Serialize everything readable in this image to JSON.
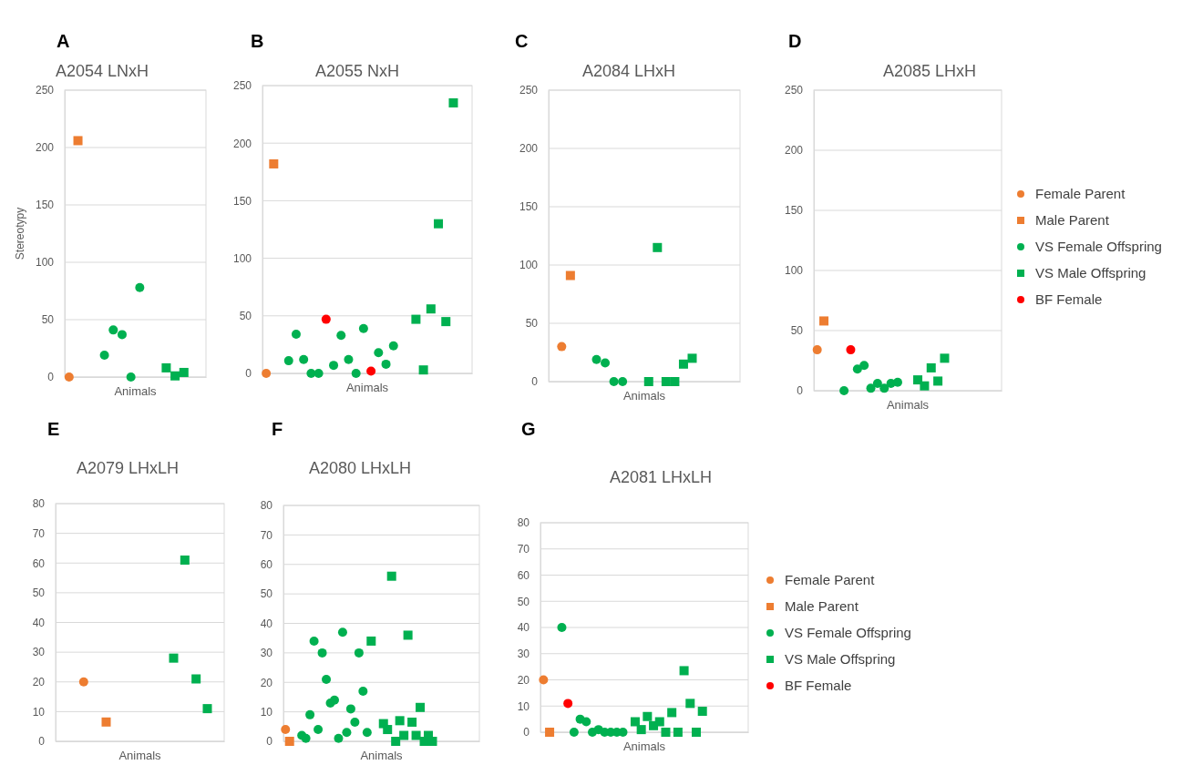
{
  "chart_data": [
    {
      "type": "scatter",
      "title": "A2054 LNxH",
      "annotations": [
        "A"
      ],
      "xlabel": "Animals",
      "ylabel": "Stereotypy",
      "categories": [
        null,
        null,
        null,
        null,
        null,
        null,
        null,
        null,
        null,
        null,
        null,
        null,
        null,
        null,
        null,
        null
      ],
      "ylim": [
        0,
        250
      ],
      "yticks": [
        0,
        50,
        100,
        150,
        200,
        250
      ],
      "grid": "y",
      "tick_labels": "y",
      "legend": false,
      "series": [
        {
          "color": "#ed7d31",
          "marker": "circle",
          "values": [
            0,
            null,
            null,
            null,
            null,
            null,
            null,
            null,
            null,
            null,
            null,
            null,
            null,
            null,
            null,
            null
          ]
        },
        {
          "color": "#ed7d31",
          "marker": "square",
          "values": [
            null,
            206,
            null,
            null,
            null,
            null,
            null,
            null,
            null,
            null,
            null,
            null,
            null,
            null,
            null,
            null
          ]
        },
        {
          "color": "#00b050",
          "marker": "circle",
          "values": [
            null,
            null,
            null,
            null,
            19,
            41,
            37,
            0,
            78,
            null,
            null,
            null,
            null,
            null,
            null,
            null
          ]
        },
        {
          "color": "#00b050",
          "marker": "square",
          "values": [
            null,
            null,
            null,
            null,
            null,
            null,
            null,
            null,
            null,
            null,
            null,
            8,
            1,
            4,
            null,
            null
          ]
        }
      ]
    },
    {
      "type": "scatter",
      "title": "A2055 NxH",
      "annotations": [
        "B"
      ],
      "xlabel": "Animals",
      "categories": [
        null,
        null,
        null,
        null,
        null,
        null,
        null,
        null,
        null,
        null,
        null,
        null,
        null,
        null,
        null,
        null,
        null,
        null,
        null,
        null,
        null,
        null,
        null,
        null,
        null,
        null,
        null,
        null
      ],
      "ylim": [
        0,
        250
      ],
      "yticks": [
        0,
        50,
        100,
        150,
        200,
        250
      ],
      "grid": "y",
      "tick_labels": "y",
      "legend": false,
      "series": [
        {
          "color": "#ed7d31",
          "marker": "circle",
          "values": [
            0,
            null,
            null,
            null,
            null,
            null,
            null,
            null,
            null,
            null,
            null,
            null,
            null,
            null,
            null,
            null,
            null,
            null,
            null,
            null,
            null,
            null,
            null,
            null,
            null,
            null,
            null,
            null
          ]
        },
        {
          "color": "#ed7d31",
          "marker": "square",
          "values": [
            null,
            182,
            null,
            null,
            null,
            null,
            null,
            null,
            null,
            null,
            null,
            null,
            null,
            null,
            null,
            null,
            null,
            null,
            null,
            null,
            null,
            null,
            null,
            null,
            null,
            null,
            null,
            null
          ]
        },
        {
          "color": "#00b050",
          "marker": "circle",
          "values": [
            null,
            null,
            null,
            11,
            34,
            12,
            0,
            0,
            null,
            7,
            33,
            12,
            0,
            39,
            null,
            18,
            8,
            24,
            null,
            null,
            null,
            null,
            null,
            null,
            null,
            null,
            null,
            null
          ]
        },
        {
          "color": "#00b050",
          "marker": "square",
          "values": [
            null,
            null,
            null,
            null,
            null,
            null,
            null,
            null,
            null,
            null,
            null,
            null,
            null,
            null,
            null,
            null,
            null,
            null,
            null,
            null,
            47,
            3,
            56,
            130,
            45,
            235,
            null,
            null
          ]
        },
        {
          "color": "#ff0000",
          "marker": "circle",
          "values": [
            null,
            null,
            null,
            null,
            null,
            null,
            null,
            null,
            47,
            null,
            null,
            null,
            null,
            null,
            2,
            null,
            null,
            null,
            null,
            null,
            null,
            null,
            null,
            null,
            null,
            null,
            null,
            null
          ]
        }
      ]
    },
    {
      "type": "scatter",
      "title": "A2084 LHxH",
      "annotations": [
        "C"
      ],
      "xlabel": "Animals",
      "categories": [
        null,
        null,
        null,
        null,
        null,
        null,
        null,
        null,
        null,
        null,
        null,
        null,
        null,
        null,
        null,
        null,
        null,
        null,
        null,
        null,
        null,
        null
      ],
      "ylim": [
        0,
        250
      ],
      "yticks": [
        0,
        50,
        100,
        150,
        200,
        250
      ],
      "grid": "y",
      "tick_labels": "y",
      "legend": false,
      "series": [
        {
          "color": "#ed7d31",
          "marker": "circle",
          "values": [
            null,
            30,
            null,
            null,
            null,
            null,
            null,
            null,
            null,
            null,
            null,
            null,
            null,
            null,
            null,
            null,
            null,
            null,
            null,
            null,
            null,
            null
          ]
        },
        {
          "color": "#ed7d31",
          "marker": "square",
          "values": [
            null,
            null,
            91,
            null,
            null,
            null,
            null,
            null,
            null,
            null,
            null,
            null,
            null,
            null,
            null,
            null,
            null,
            null,
            null,
            null,
            null,
            null
          ]
        },
        {
          "color": "#00b050",
          "marker": "circle",
          "values": [
            null,
            null,
            null,
            null,
            null,
            19,
            16,
            0,
            0,
            null,
            null,
            null,
            null,
            null,
            null,
            null,
            null,
            null,
            null,
            null,
            null,
            null
          ]
        },
        {
          "color": "#00b050",
          "marker": "square",
          "values": [
            null,
            null,
            null,
            null,
            null,
            null,
            null,
            null,
            null,
            null,
            null,
            0,
            115,
            0,
            0,
            15,
            20,
            null,
            null,
            null,
            null,
            null
          ]
        }
      ]
    },
    {
      "type": "scatter",
      "title": "A2085 LHxH",
      "annotations": [
        "D"
      ],
      "xlabel": "Animals",
      "categories": [
        null,
        null,
        null,
        null,
        null,
        null,
        null,
        null,
        null,
        null,
        null,
        null,
        null,
        null,
        null,
        null,
        null,
        null,
        null,
        null,
        null,
        null,
        null,
        null,
        null,
        null,
        null,
        null
      ],
      "ylim": [
        0,
        250
      ],
      "yticks": [
        0,
        50,
        100,
        150,
        200,
        250
      ],
      "grid": "y",
      "tick_labels": "y",
      "legend": "right",
      "series": [
        {
          "name": "Female Parent",
          "color": "#ed7d31",
          "marker": "circle",
          "values": [
            34,
            null,
            null,
            null,
            null,
            null,
            null,
            null,
            null,
            null,
            null,
            null,
            null,
            null,
            null,
            null,
            null,
            null,
            null,
            null,
            null,
            null,
            null,
            null,
            null,
            null,
            null,
            null
          ]
        },
        {
          "name": "Male Parent",
          "color": "#ed7d31",
          "marker": "square",
          "values": [
            null,
            58,
            null,
            null,
            null,
            null,
            null,
            null,
            null,
            null,
            null,
            null,
            null,
            null,
            null,
            null,
            null,
            null,
            null,
            null,
            null,
            null,
            null,
            null,
            null,
            null,
            null,
            null
          ]
        },
        {
          "name": "VS Female Offspring",
          "color": "#00b050",
          "marker": "circle",
          "values": [
            null,
            null,
            null,
            null,
            0,
            null,
            18,
            21,
            2,
            6,
            2,
            6,
            7,
            null,
            null,
            null,
            null,
            null,
            null,
            null,
            null,
            null,
            null,
            null,
            null,
            null,
            null,
            null
          ]
        },
        {
          "name": "VS Male Offspring",
          "color": "#00b050",
          "marker": "square",
          "values": [
            null,
            null,
            null,
            null,
            null,
            null,
            null,
            null,
            null,
            null,
            null,
            null,
            null,
            null,
            null,
            9,
            4,
            19,
            8,
            27,
            null,
            null,
            null,
            null,
            null,
            null,
            null,
            null
          ]
        },
        {
          "name": "BF Female",
          "color": "#ff0000",
          "marker": "circle",
          "values": [
            null,
            null,
            null,
            null,
            null,
            34,
            null,
            null,
            null,
            null,
            null,
            null,
            null,
            null,
            null,
            null,
            null,
            null,
            null,
            null,
            null,
            null,
            null,
            null,
            null,
            null,
            null,
            null
          ]
        }
      ]
    },
    {
      "type": "scatter",
      "title": "A2079 LHxLH",
      "annotations": [
        "E"
      ],
      "xlabel": "Animals",
      "categories": [
        null,
        null,
        null,
        null,
        null,
        null,
        null,
        null,
        null,
        null,
        null,
        null,
        null,
        null,
        null
      ],
      "ylim": [
        0,
        80
      ],
      "yticks": [
        0,
        10,
        20,
        30,
        40,
        50,
        60,
        70,
        80
      ],
      "grid": "y",
      "tick_labels": "y",
      "legend": false,
      "series": [
        {
          "color": "#ed7d31",
          "marker": "circle",
          "values": [
            null,
            null,
            20,
            null,
            null,
            null,
            null,
            null,
            null,
            null,
            null,
            null,
            null,
            null,
            null
          ]
        },
        {
          "color": "#ed7d31",
          "marker": "square",
          "values": [
            null,
            null,
            null,
            null,
            6.5,
            null,
            null,
            null,
            null,
            null,
            null,
            null,
            null,
            null,
            null
          ]
        },
        {
          "color": "#00b050",
          "marker": "square",
          "values": [
            null,
            null,
            null,
            null,
            null,
            null,
            null,
            null,
            null,
            null,
            28,
            61,
            21,
            11,
            null
          ]
        }
      ]
    },
    {
      "type": "scatter",
      "title": "A2080  LHxLH",
      "annotations": [
        "F"
      ],
      "xlabel": "Animals",
      "categories": [
        null,
        null,
        null,
        null,
        null,
        null,
        null,
        null,
        null,
        null,
        null,
        null,
        null,
        null,
        null,
        null,
        null,
        null,
        null,
        null,
        null,
        null,
        null,
        null,
        null,
        null,
        null,
        null,
        null,
        null,
        null,
        null,
        null,
        null,
        null,
        null,
        null,
        null,
        null,
        null,
        null,
        null,
        null,
        null,
        null,
        null,
        null,
        null
      ],
      "ylim": [
        0,
        80
      ],
      "yticks": [
        0,
        10,
        20,
        30,
        40,
        50,
        60,
        70,
        80
      ],
      "grid": "y",
      "tick_labels": "y",
      "legend": false,
      "series": [
        {
          "color": "#ed7d31",
          "marker": "circle",
          "values": [
            4,
            null,
            null,
            null,
            null,
            null,
            null,
            null,
            null,
            null,
            null,
            null,
            null,
            null,
            null,
            null,
            null,
            null,
            null,
            null,
            null,
            null,
            null,
            null,
            null,
            null,
            null,
            null,
            null,
            null,
            null,
            null,
            null,
            null,
            null,
            null,
            null,
            null,
            null,
            null,
            null,
            null,
            null,
            null,
            null,
            null,
            null,
            null
          ]
        },
        {
          "color": "#ed7d31",
          "marker": "square",
          "values": [
            null,
            0,
            null,
            null,
            null,
            null,
            null,
            null,
            null,
            null,
            null,
            null,
            null,
            null,
            null,
            null,
            null,
            null,
            null,
            null,
            null,
            null,
            null,
            null,
            null,
            null,
            null,
            null,
            null,
            null,
            null,
            null,
            null,
            null,
            null,
            null,
            null,
            null,
            null,
            null,
            null,
            null,
            null,
            null,
            null,
            null,
            null,
            null
          ]
        },
        {
          "color": "#00b050",
          "marker": "circle",
          "values": [
            null,
            null,
            null,
            null,
            2,
            1,
            9,
            34,
            4,
            30,
            21,
            13,
            14,
            1,
            37,
            3,
            11,
            6.5,
            30,
            17,
            3,
            null,
            null,
            null,
            null,
            null,
            null,
            null,
            null,
            null,
            null,
            null,
            null,
            null,
            null,
            null,
            null,
            null,
            null,
            null,
            null,
            null,
            null,
            null,
            null,
            null,
            null,
            null
          ]
        },
        {
          "color": "#00b050",
          "marker": "square",
          "values": [
            null,
            null,
            null,
            null,
            null,
            null,
            null,
            null,
            null,
            null,
            null,
            null,
            null,
            null,
            null,
            null,
            null,
            null,
            null,
            null,
            null,
            34,
            null,
            null,
            6,
            4,
            56,
            0,
            7,
            2,
            36,
            6.5,
            2,
            11.5,
            0,
            2,
            0,
            null,
            null,
            null,
            null,
            null,
            null,
            null,
            null,
            null,
            null,
            null
          ]
        }
      ]
    },
    {
      "type": "scatter",
      "title": "A2081 LHxLH",
      "annotations": [
        "G"
      ],
      "xlabel": "Animals",
      "categories": [
        null,
        null,
        null,
        null,
        null,
        null,
        null,
        null,
        null,
        null,
        null,
        null,
        null,
        null,
        null,
        null,
        null,
        null,
        null,
        null,
        null,
        null,
        null,
        null,
        null,
        null,
        null,
        null,
        null,
        null,
        null,
        null,
        null,
        null
      ],
      "ylim": [
        0,
        80
      ],
      "yticks": [
        0,
        10,
        20,
        30,
        40,
        50,
        60,
        70,
        80
      ],
      "grid": "y",
      "tick_labels": "y",
      "legend": "right",
      "series": [
        {
          "name": "Female Parent",
          "color": "#ed7d31",
          "marker": "circle",
          "values": [
            20,
            null,
            null,
            null,
            null,
            null,
            null,
            null,
            null,
            null,
            null,
            null,
            null,
            null,
            null,
            null,
            null,
            null,
            null,
            null,
            null,
            null,
            null,
            null,
            null,
            null,
            null,
            null,
            null,
            null,
            null,
            null,
            null,
            null
          ]
        },
        {
          "name": "Male Parent",
          "color": "#ed7d31",
          "marker": "square",
          "values": [
            null,
            0,
            null,
            null,
            null,
            null,
            null,
            null,
            null,
            null,
            null,
            null,
            null,
            null,
            null,
            null,
            null,
            null,
            null,
            null,
            null,
            null,
            null,
            null,
            null,
            null,
            null,
            null,
            null,
            null,
            null,
            null,
            null,
            null
          ]
        },
        {
          "name": "VS Female Offspring",
          "color": "#00b050",
          "marker": "circle",
          "values": [
            null,
            null,
            null,
            40,
            null,
            0,
            5,
            4,
            0,
            1,
            0,
            0,
            0,
            0,
            null,
            null,
            null,
            null,
            null,
            null,
            null,
            null,
            null,
            null,
            null,
            null,
            null,
            null,
            null,
            null,
            null,
            null,
            null,
            null
          ]
        },
        {
          "name": "VS Male Offspring",
          "color": "#00b050",
          "marker": "square",
          "values": [
            null,
            null,
            null,
            null,
            null,
            null,
            null,
            null,
            null,
            null,
            null,
            null,
            null,
            null,
            null,
            4,
            1,
            6,
            2.5,
            4,
            0,
            7.5,
            0,
            23.5,
            11,
            0,
            8,
            null,
            null,
            null,
            null,
            null,
            null,
            null
          ]
        },
        {
          "name": "BF Female",
          "color": "#ff0000",
          "marker": "circle",
          "values": [
            null,
            null,
            null,
            null,
            11,
            null,
            null,
            null,
            null,
            null,
            null,
            null,
            null,
            null,
            null,
            null,
            null,
            null,
            null,
            null,
            null,
            null,
            null,
            null,
            null,
            null,
            null,
            null,
            null,
            null,
            null,
            null,
            null,
            null
          ]
        }
      ]
    }
  ]
}
